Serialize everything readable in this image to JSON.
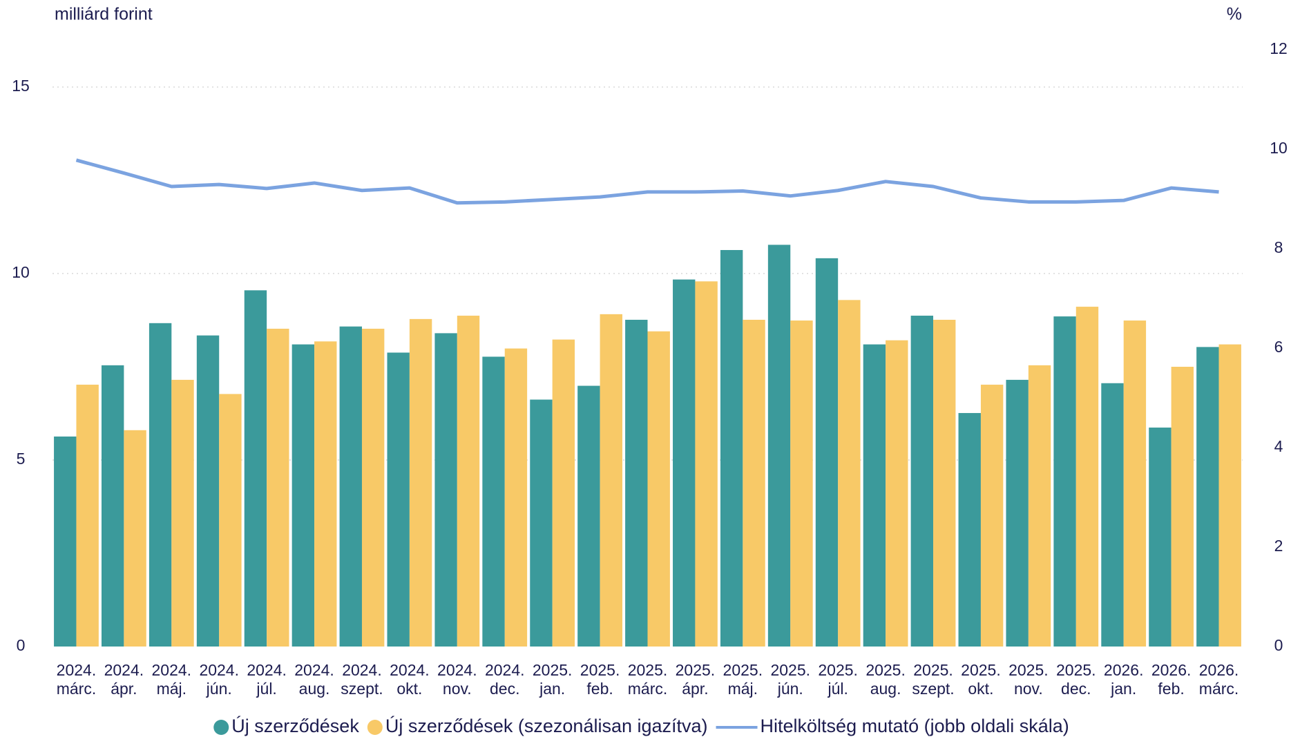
{
  "chart_data": {
    "type": "bar_line",
    "ylabel": "milliárd forint",
    "y2label": "%",
    "categories": [
      [
        "2024.",
        "márc."
      ],
      [
        "2024.",
        "ápr."
      ],
      [
        "2024.",
        "máj."
      ],
      [
        "2024.",
        "jún."
      ],
      [
        "2024.",
        "júl."
      ],
      [
        "2024.",
        "aug."
      ],
      [
        "2024.",
        "szept."
      ],
      [
        "2024.",
        "okt."
      ],
      [
        "2024.",
        "nov."
      ],
      [
        "2024.",
        "dec."
      ],
      [
        "2025.",
        "jan."
      ],
      [
        "2025.",
        "feb."
      ],
      [
        "2025.",
        "márc."
      ],
      [
        "2025.",
        "ápr."
      ],
      [
        "2025.",
        "máj."
      ],
      [
        "2025.",
        "jún."
      ],
      [
        "2025.",
        "júl."
      ],
      [
        "2025.",
        "aug."
      ],
      [
        "2025.",
        "szept."
      ],
      [
        "2025.",
        "okt."
      ],
      [
        "2025.",
        "nov."
      ],
      [
        "2025.",
        "dec."
      ],
      [
        "2026.",
        "jan."
      ],
      [
        "2026.",
        "feb."
      ],
      [
        "2026.",
        "márc."
      ]
    ],
    "series": [
      {
        "name": "Új szerződések",
        "type": "bar",
        "color": "#3b9a9b",
        "values": [
          5.63,
          7.54,
          8.67,
          8.34,
          9.55,
          8.1,
          8.58,
          7.88,
          8.4,
          7.77,
          6.62,
          6.99,
          8.76,
          9.84,
          10.63,
          10.77,
          10.41,
          8.1,
          8.87,
          6.26,
          7.15,
          8.85,
          7.06,
          5.87,
          8.03
        ]
      },
      {
        "name": "Új szerződések (szezonálisan igazítva)",
        "type": "bar",
        "color": "#f8c967",
        "values": [
          7.02,
          5.8,
          7.15,
          6.77,
          8.52,
          8.18,
          8.52,
          8.78,
          8.87,
          7.99,
          8.23,
          8.91,
          8.45,
          9.79,
          8.76,
          8.74,
          9.29,
          8.21,
          8.76,
          7.02,
          7.54,
          9.11,
          8.74,
          7.5,
          8.1
        ]
      },
      {
        "name": "Hitelköltség mutató (jobb oldali skála)",
        "type": "line",
        "axis": "y2",
        "color": "#7ba3e0",
        "values": [
          9.78,
          9.52,
          9.25,
          9.29,
          9.21,
          9.32,
          9.17,
          9.22,
          8.92,
          8.94,
          8.99,
          9.04,
          9.14,
          9.14,
          9.16,
          9.06,
          9.17,
          9.35,
          9.25,
          9.02,
          8.94,
          8.94,
          8.97,
          9.22,
          9.14
        ]
      }
    ],
    "ylim": [
      0,
      16
    ],
    "yticks": [
      0,
      5,
      10,
      15
    ],
    "y2lim": [
      0,
      12
    ],
    "y2ticks": [
      0,
      2,
      4,
      6,
      8,
      10,
      12
    ],
    "grid": true,
    "legend": "bottom"
  }
}
